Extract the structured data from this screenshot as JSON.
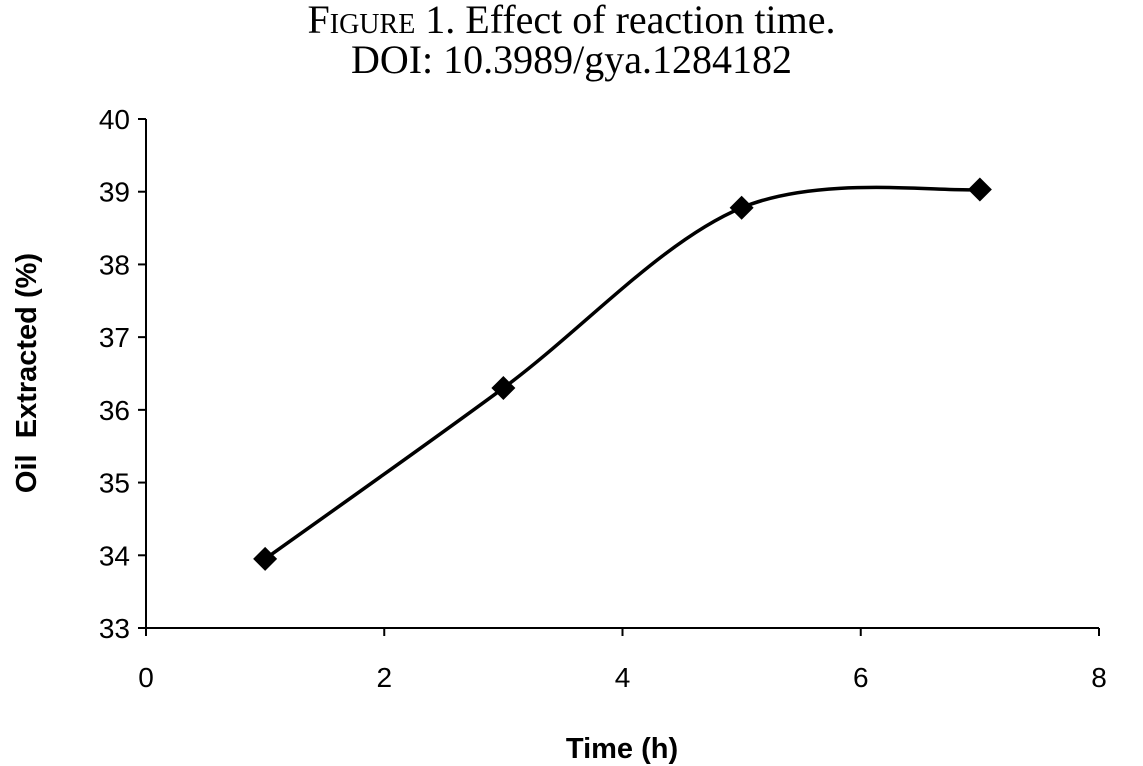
{
  "figure": {
    "label": "Figure 1.",
    "caption": "Effect of reaction time.",
    "doi": "DOI: 10.3989/gya.1284182"
  },
  "chart_data": {
    "type": "line",
    "xlabel": "Time (h)",
    "ylabel": "Oil  Extracted (%)",
    "xlim": [
      0,
      8
    ],
    "ylim": [
      33,
      40
    ],
    "xticks": [
      0,
      2,
      4,
      6,
      8
    ],
    "yticks": [
      33,
      34,
      35,
      36,
      37,
      38,
      39,
      40
    ],
    "smooth": true,
    "grid": false,
    "legend": "none",
    "series": [
      {
        "marker": "diamond",
        "color": "#000000",
        "points": [
          {
            "x": 1,
            "y": 33.95
          },
          {
            "x": 3,
            "y": 36.3
          },
          {
            "x": 5,
            "y": 38.78
          },
          {
            "x": 7,
            "y": 39.03
          }
        ]
      }
    ]
  }
}
